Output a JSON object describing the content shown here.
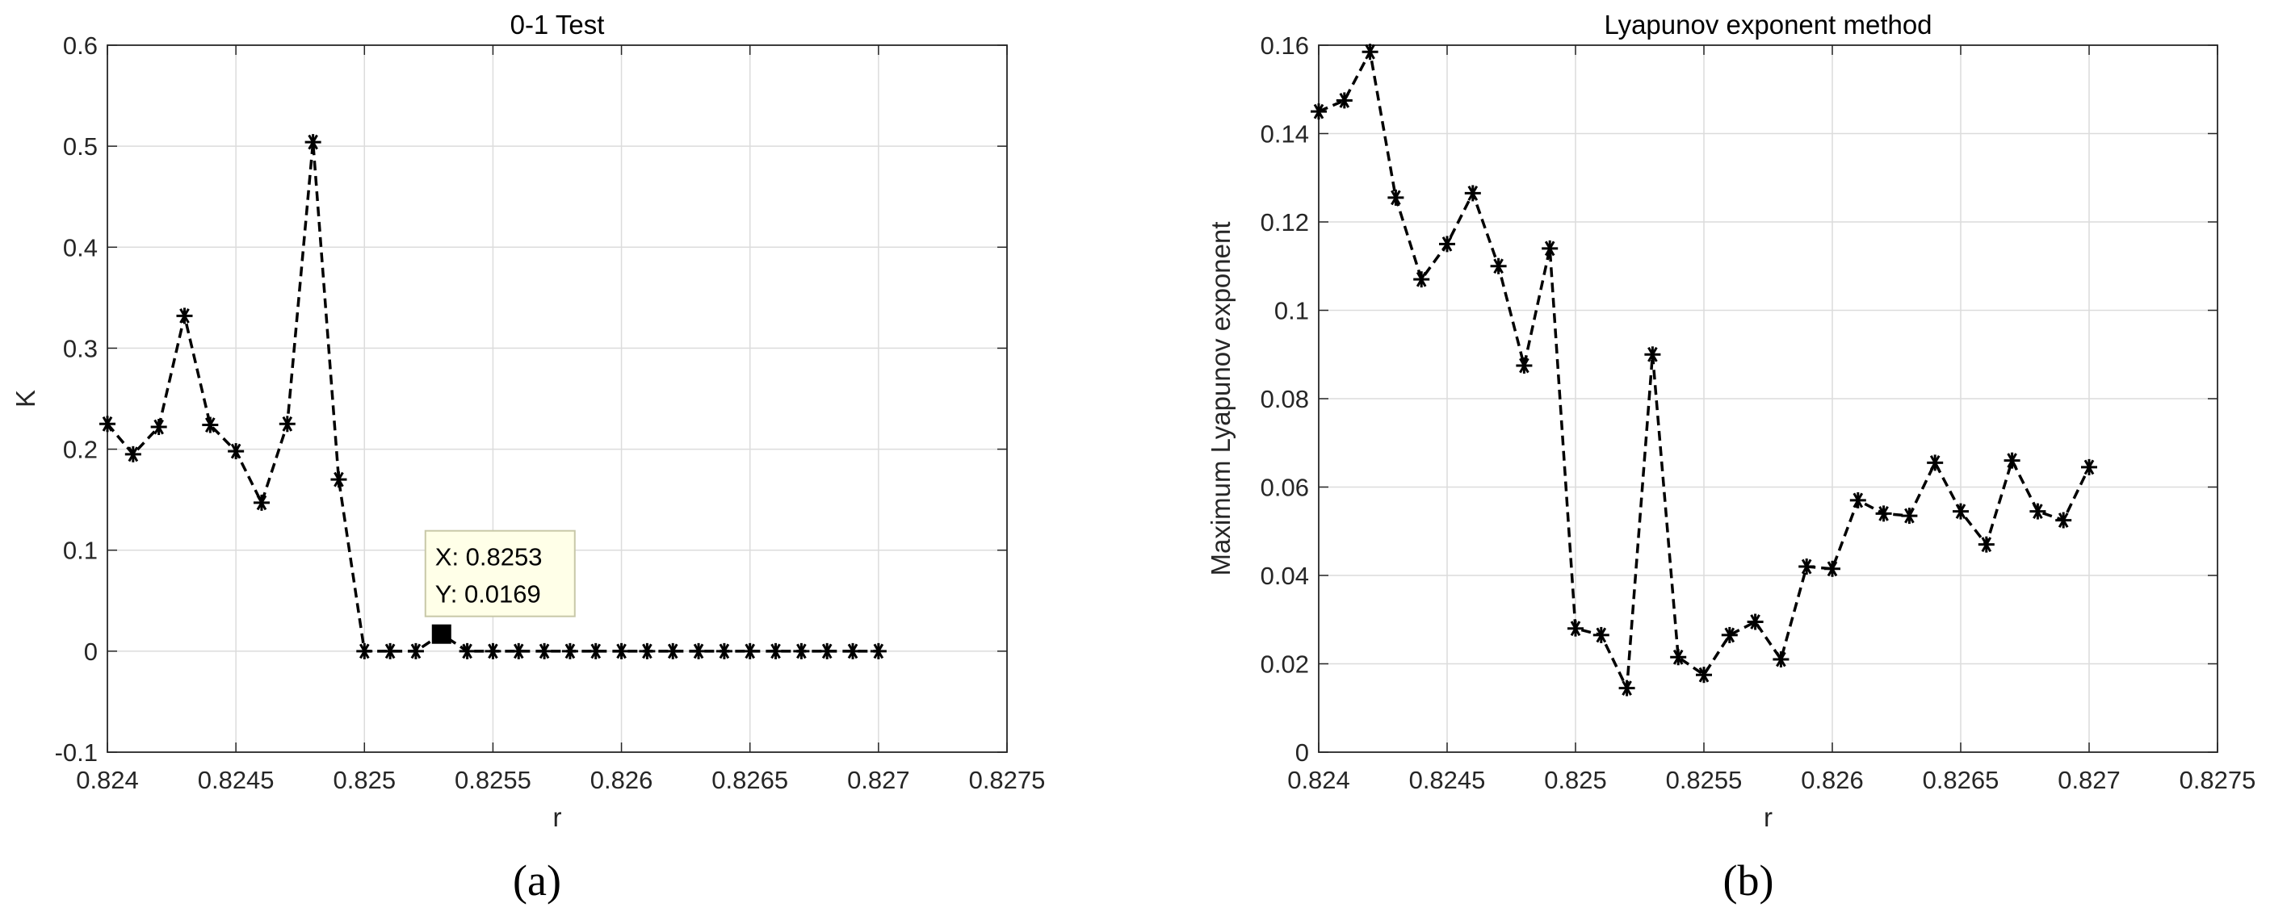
{
  "figure": {
    "panel_labels": [
      "(a)",
      "(b)"
    ]
  },
  "chart_data": [
    {
      "type": "line",
      "title": "0-1 Test",
      "xlabel": "r",
      "ylabel": "K",
      "xlim": [
        0.824,
        0.8275
      ],
      "ylim": [
        -0.1,
        0.6
      ],
      "xticks": [
        "0.824",
        "0.8245",
        "0.825",
        "0.8255",
        "0.826",
        "0.8265",
        "0.827",
        "0.8275"
      ],
      "yticks": [
        "-0.1",
        "0",
        "0.1",
        "0.2",
        "0.3",
        "0.4",
        "0.5",
        "0.6"
      ],
      "grid": true,
      "line_style": "dashed",
      "marker": "asterisk",
      "series": [
        {
          "x": [
            0.824,
            0.8241,
            0.8242,
            0.8243,
            0.8244,
            0.8245,
            0.8246,
            0.8247,
            0.8248,
            0.8249,
            0.825,
            0.8251,
            0.8252,
            0.8253,
            0.8254,
            0.8255,
            0.8256,
            0.8257,
            0.8258,
            0.8259,
            0.826,
            0.8261,
            0.8262,
            0.8263,
            0.8264,
            0.8265,
            0.8266,
            0.8267,
            0.8268,
            0.8269,
            0.827
          ],
          "y": [
            0.225,
            0.195,
            0.222,
            0.332,
            0.224,
            0.198,
            0.147,
            0.225,
            0.504,
            0.17,
            0.0,
            0.0,
            0.0,
            0.0169,
            0.0,
            0.0,
            0.0,
            0.0,
            0.0,
            0.0,
            0.0,
            0.0,
            0.0,
            0.0,
            0.0,
            0.0,
            0.0,
            0.0,
            0.0,
            0.0,
            0.0
          ]
        }
      ],
      "datatip": {
        "x": 0.8253,
        "y": 0.0169,
        "line1": "X: 0.8253",
        "line2": "Y: 0.0169"
      }
    },
    {
      "type": "line",
      "title": "Lyapunov exponent method",
      "xlabel": "r",
      "ylabel": "Maximum Lyapunov exponent",
      "xlim": [
        0.824,
        0.8275
      ],
      "ylim": [
        0,
        0.16
      ],
      "xticks": [
        "0.824",
        "0.8245",
        "0.825",
        "0.8255",
        "0.826",
        "0.8265",
        "0.827",
        "0.8275"
      ],
      "yticks": [
        "0",
        "0.02",
        "0.04",
        "0.06",
        "0.08",
        "0.1",
        "0.12",
        "0.14",
        "0.16"
      ],
      "grid": true,
      "line_style": "dashed",
      "marker": "asterisk",
      "series": [
        {
          "x": [
            0.824,
            0.8241,
            0.8242,
            0.8243,
            0.8244,
            0.8245,
            0.8246,
            0.8247,
            0.8248,
            0.8249,
            0.825,
            0.8251,
            0.8252,
            0.8253,
            0.8254,
            0.8255,
            0.8256,
            0.8257,
            0.8258,
            0.8259,
            0.826,
            0.8261,
            0.8262,
            0.8263,
            0.8264,
            0.8265,
            0.8266,
            0.8267,
            0.8268,
            0.8269,
            0.827
          ],
          "y": [
            0.145,
            0.1475,
            0.1585,
            0.1255,
            0.107,
            0.115,
            0.1265,
            0.11,
            0.0875,
            0.114,
            0.028,
            0.0265,
            0.0145,
            0.09,
            0.0215,
            0.0175,
            0.0265,
            0.0295,
            0.021,
            0.042,
            0.0415,
            0.057,
            0.054,
            0.0535,
            0.0655,
            0.0545,
            0.047,
            0.066,
            0.0545,
            0.0525,
            0.0645
          ]
        }
      ]
    }
  ]
}
